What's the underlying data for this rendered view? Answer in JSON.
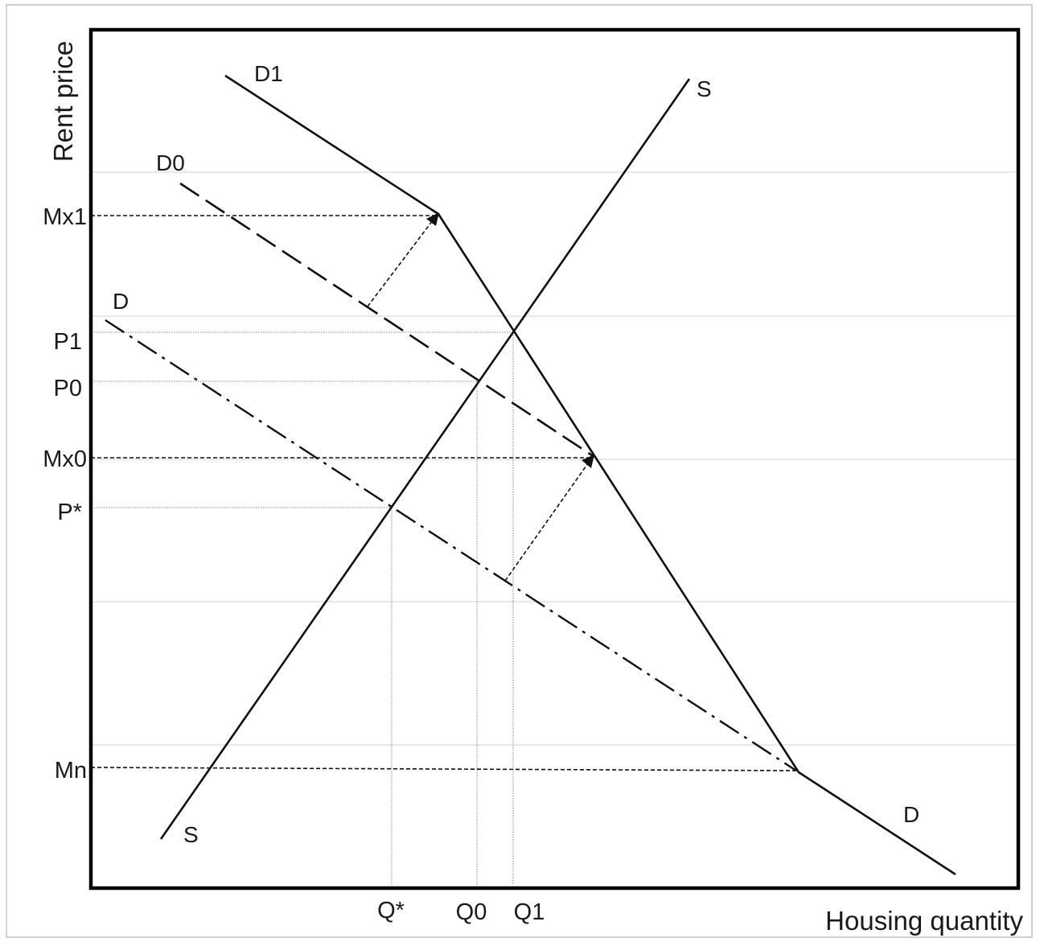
{
  "axes": {
    "x_title": "Housing quantity",
    "y_title": "Rent price"
  },
  "y_tick_labels": {
    "mx1": "Mx1",
    "p1": "P1",
    "p0": "P0",
    "mx0": "Mx0",
    "pstar": "P*",
    "mn": "Mn"
  },
  "x_tick_labels": {
    "qstar": "Q*",
    "q0": "Q0",
    "q1": "Q1"
  },
  "curve_labels": {
    "d1": "D1",
    "d0": "D0",
    "d_top": "D",
    "d_bottom": "D",
    "s_top": "S",
    "s_bottom": "S"
  },
  "colors": {
    "line": "#111111",
    "gridline": "#d9d9d9",
    "guide": "#8a8a8a",
    "frame": "#000000"
  }
}
